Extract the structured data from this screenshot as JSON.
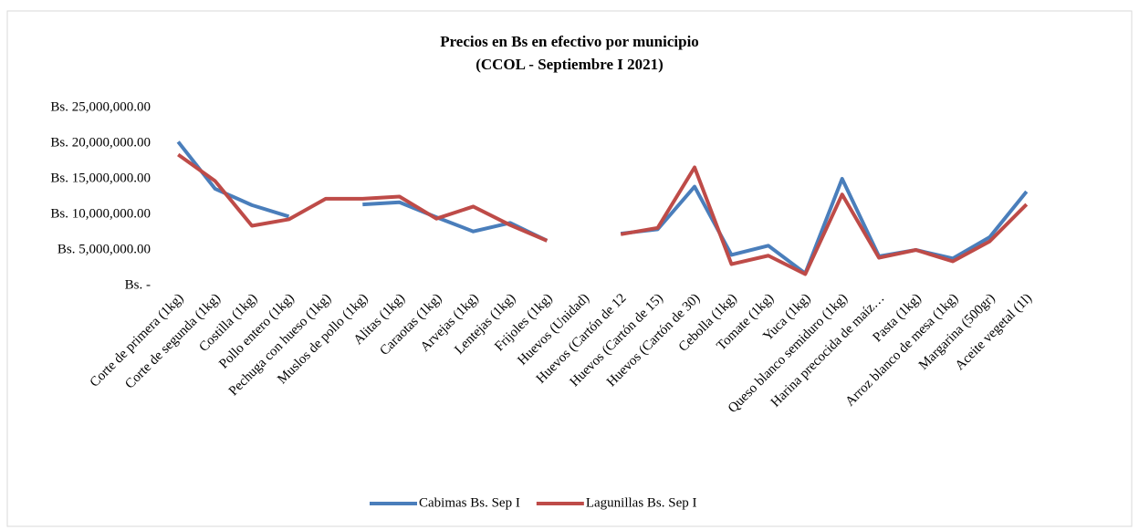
{
  "chart_data": {
    "type": "line",
    "title": "Precios en Bs en efectivo por municipio",
    "subtitle": "(CCOL - Septiembre I 2021)",
    "categories": [
      "Corte de primera (1kg)",
      "Corte de segunda (1kg)",
      "Costilla (1kg)",
      "Pollo entero (1kg)",
      "Pechuga con hueso (1kg)",
      "Muslos de pollo (1kg)",
      "Alitas (1kg)",
      "Caraotas (1kg)",
      "Arvejas (1kg)",
      "Lentejas (1kg)",
      "Frijoles (1kg)",
      "Huevos (Unidad)",
      "Huevos (Cartón de 12",
      "Huevos (Cartón de 15)",
      "Huevos (Cartón de 30)",
      "Cebolla (1kg)",
      "Tomate (1kg)",
      "Yuca (1kg)",
      "Queso blanco semiduro (1kg)",
      "Harina precocida de maíz…",
      "Pasta (1kg)",
      "Arroz blanco de mesa (1kg)",
      "Margarina (500gr)",
      "Aceite vegetal (1l)"
    ],
    "series": [
      {
        "name": "Cabimas Bs. Sep I",
        "color": "#4a7ebb",
        "values": [
          20200000,
          13600000,
          11300000,
          9700000,
          null,
          11400000,
          11700000,
          9600000,
          7600000,
          8800000,
          6300000,
          null,
          7300000,
          7900000,
          13900000,
          4300000,
          5600000,
          1700000,
          15000000,
          4100000,
          5000000,
          3800000,
          6800000,
          13200000
        ]
      },
      {
        "name": "Lagunillas Bs. Sep I",
        "color": "#be4b48",
        "values": [
          18400000,
          14700000,
          8400000,
          9300000,
          12200000,
          12200000,
          12500000,
          9400000,
          11100000,
          8500000,
          6300000,
          null,
          7200000,
          8100000,
          16600000,
          3000000,
          4200000,
          1600000,
          12800000,
          3900000,
          5000000,
          3400000,
          6200000,
          11400000
        ]
      }
    ],
    "ylim": [
      0,
      25000000
    ],
    "yticks": [
      {
        "value": 0,
        "label": "Bs. -"
      },
      {
        "value": 5000000,
        "label": "Bs. 5,000,000.00"
      },
      {
        "value": 10000000,
        "label": "Bs. 10,000,000.00"
      },
      {
        "value": 15000000,
        "label": "Bs. 15,000,000.00"
      },
      {
        "value": 20000000,
        "label": "Bs. 20,000,000.00"
      },
      {
        "value": 25000000,
        "label": "Bs. 25,000,000.00"
      }
    ],
    "grid": false,
    "legend": "bottom"
  }
}
